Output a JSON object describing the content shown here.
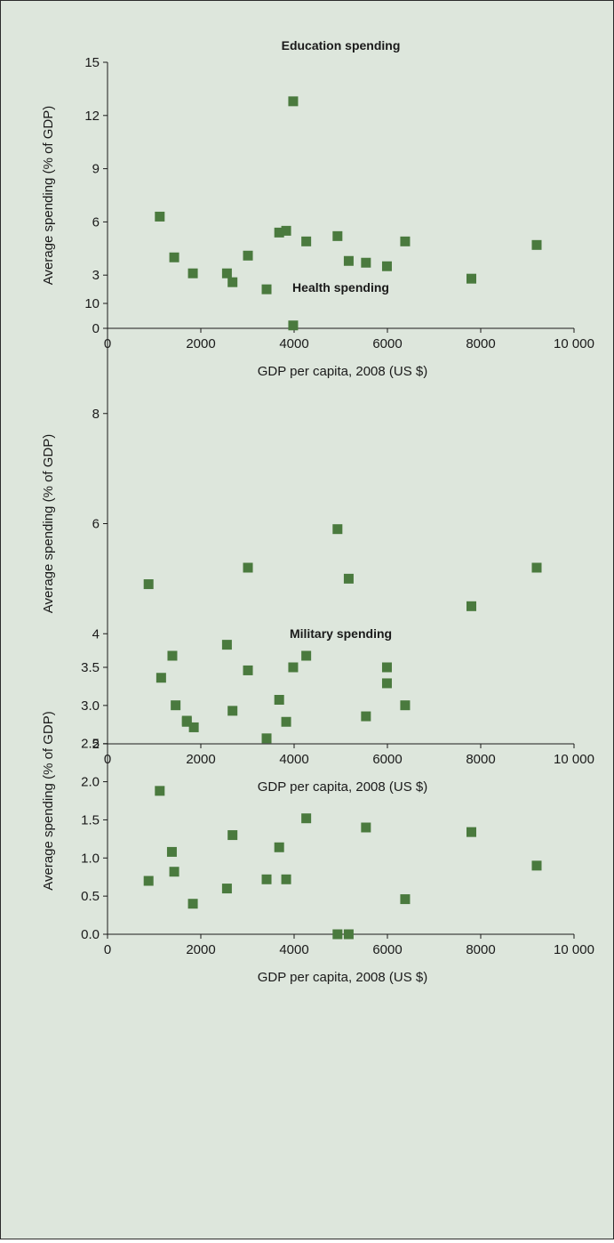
{
  "colors": {
    "marker": "#4a7a3e",
    "axis": "#1a1a1a",
    "background": "#dde6dc"
  },
  "chart_data": [
    {
      "type": "scatter",
      "title": "Education spending",
      "xlabel": "GDP per capita, 2008 (US $)",
      "ylabel": "Average spending (% of GDP)",
      "xlim": [
        0,
        10000
      ],
      "ylim": [
        0,
        15
      ],
      "x_ticks": [
        "0",
        "2000",
        "4000",
        "6000",
        "8000",
        "10 000"
      ],
      "y_ticks": [
        "0",
        "3",
        "6",
        "9",
        "12",
        "15"
      ],
      "grid": false,
      "points": [
        {
          "x": 1120,
          "y": 6.3
        },
        {
          "x": 1430,
          "y": 4.0
        },
        {
          "x": 1830,
          "y": 3.1
        },
        {
          "x": 2560,
          "y": 3.1
        },
        {
          "x": 2680,
          "y": 2.6
        },
        {
          "x": 3010,
          "y": 4.1
        },
        {
          "x": 3410,
          "y": 2.2
        },
        {
          "x": 3680,
          "y": 5.4
        },
        {
          "x": 3830,
          "y": 5.5
        },
        {
          "x": 3980,
          "y": 12.8
        },
        {
          "x": 4260,
          "y": 4.9
        },
        {
          "x": 4930,
          "y": 5.2
        },
        {
          "x": 5170,
          "y": 3.8
        },
        {
          "x": 5540,
          "y": 3.7
        },
        {
          "x": 5990,
          "y": 3.5
        },
        {
          "x": 6380,
          "y": 4.9
        },
        {
          "x": 7800,
          "y": 2.8
        },
        {
          "x": 9200,
          "y": 4.7
        }
      ]
    },
    {
      "type": "scatter",
      "title": "Health spending",
      "xlabel": "GDP per capita, 2008 (US $)",
      "ylabel": "Average spending (% of GDP)",
      "xlim": [
        0,
        10000
      ],
      "ylim": [
        2,
        10
      ],
      "x_ticks": [
        "0",
        "2000",
        "4000",
        "6000",
        "8000",
        "10 000"
      ],
      "y_ticks": [
        "2",
        "4",
        "6",
        "8",
        "10"
      ],
      "grid": false,
      "points": [
        {
          "x": 880,
          "y": 4.9
        },
        {
          "x": 1150,
          "y": 3.2
        },
        {
          "x": 1390,
          "y": 3.6
        },
        {
          "x": 1460,
          "y": 2.7
        },
        {
          "x": 1700,
          "y": 2.4
        },
        {
          "x": 1850,
          "y": 2.3
        },
        {
          "x": 2560,
          "y": 3.8
        },
        {
          "x": 2680,
          "y": 2.6
        },
        {
          "x": 3010,
          "y": 5.2
        },
        {
          "x": 3410,
          "y": 2.1
        },
        {
          "x": 3680,
          "y": 2.8
        },
        {
          "x": 3830,
          "y": 2.4
        },
        {
          "x": 3980,
          "y": 9.6
        },
        {
          "x": 4260,
          "y": 3.6
        },
        {
          "x": 4930,
          "y": 5.9
        },
        {
          "x": 5170,
          "y": 5.0
        },
        {
          "x": 5540,
          "y": 2.5
        },
        {
          "x": 5990,
          "y": 3.1
        },
        {
          "x": 6380,
          "y": 2.7
        },
        {
          "x": 7800,
          "y": 4.5
        },
        {
          "x": 9200,
          "y": 5.2
        }
      ]
    },
    {
      "type": "scatter",
      "title": "Military spending",
      "xlabel": "GDP per capita, 2008 (US $)",
      "ylabel": "Average spending (% of GDP)",
      "xlim": [
        0,
        10000
      ],
      "ylim": [
        0,
        3.5
      ],
      "x_ticks": [
        "0",
        "2000",
        "4000",
        "6000",
        "8000",
        "10 000"
      ],
      "y_ticks": [
        "0.0",
        "0.5",
        "1.0",
        "1.5",
        "2.0",
        "2.5",
        "3.0",
        "3.5"
      ],
      "grid": false,
      "points": [
        {
          "x": 880,
          "y": 0.7
        },
        {
          "x": 1120,
          "y": 1.88
        },
        {
          "x": 1380,
          "y": 1.08
        },
        {
          "x": 1430,
          "y": 0.82
        },
        {
          "x": 1700,
          "y": 2.8
        },
        {
          "x": 1830,
          "y": 0.4
        },
        {
          "x": 2560,
          "y": 0.6
        },
        {
          "x": 2680,
          "y": 1.3
        },
        {
          "x": 3010,
          "y": 3.46
        },
        {
          "x": 3410,
          "y": 0.72
        },
        {
          "x": 3680,
          "y": 1.14
        },
        {
          "x": 3830,
          "y": 0.72
        },
        {
          "x": 3980,
          "y": 3.5
        },
        {
          "x": 4260,
          "y": 1.52
        },
        {
          "x": 4930,
          "y": 0.0
        },
        {
          "x": 5170,
          "y": 0.0
        },
        {
          "x": 5540,
          "y": 1.4
        },
        {
          "x": 5990,
          "y": 3.5
        },
        {
          "x": 6380,
          "y": 0.46
        },
        {
          "x": 7800,
          "y": 1.34
        },
        {
          "x": 9200,
          "y": 0.9
        }
      ]
    }
  ]
}
